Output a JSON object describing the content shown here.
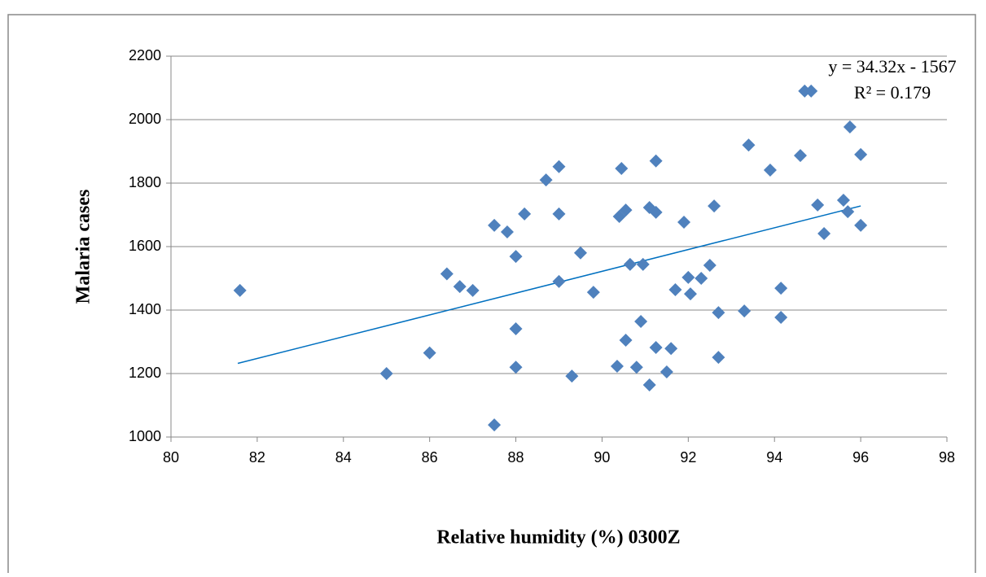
{
  "chart_data": {
    "type": "scatter",
    "x_label": "Relative humidity (%) 0300Z",
    "y_label": "Malaria cases",
    "series": [
      {
        "name": "Malaria cases",
        "color": "#4f81bd",
        "x": [
          81.6,
          85.0,
          86.0,
          86.4,
          86.7,
          87.0,
          87.5,
          87.5,
          87.8,
          88.0,
          88.0,
          88.0,
          88.2,
          88.7,
          89.0,
          89.0,
          89.0,
          89.5,
          89.3,
          89.8,
          90.35,
          90.4,
          90.45,
          90.55,
          90.55,
          90.65,
          90.8,
          90.9,
          90.95,
          91.1,
          91.1,
          91.25,
          91.25,
          91.25,
          91.5,
          91.6,
          91.7,
          91.9,
          92.0,
          92.05,
          92.3,
          92.5,
          92.6,
          92.7,
          92.7,
          93.3,
          93.4,
          93.9,
          94.15,
          94.15,
          94.6,
          94.7,
          94.85,
          95.0,
          95.15,
          95.6,
          95.7,
          95.75,
          96.0,
          96.0
        ],
        "values": [
          1462,
          1200,
          1265,
          1514,
          1474,
          1462,
          1038,
          1667,
          1646,
          1569,
          1341,
          1220,
          1703,
          1810,
          1852,
          1490,
          1703,
          1580,
          1192,
          1456,
          1223,
          1695,
          1846,
          1715,
          1305,
          1544,
          1220,
          1364,
          1544,
          1164,
          1723,
          1708,
          1282,
          1870,
          1205,
          1279,
          1464,
          1677,
          1503,
          1451,
          1500,
          1541,
          1728,
          1251,
          1392,
          1397,
          1920,
          1841,
          1469,
          1377,
          1887,
          2090,
          2090,
          1731,
          1641,
          1746,
          1710,
          1977,
          1667,
          1890
        ]
      }
    ],
    "trendline": {
      "color": "#0070c0",
      "x": [
        81.55,
        96.0
      ],
      "values": [
        1232,
        1728
      ],
      "equation": "y = 34.32x - 1567",
      "r_squared": "R² = 0.179"
    },
    "xlim": [
      80,
      98
    ],
    "xticks": [
      80,
      82,
      84,
      86,
      88,
      90,
      92,
      94,
      96,
      98
    ],
    "ylim": [
      1000,
      2200
    ],
    "yticks": [
      1000,
      1200,
      1400,
      1600,
      1800,
      2000,
      2200
    ],
    "grid": true
  }
}
